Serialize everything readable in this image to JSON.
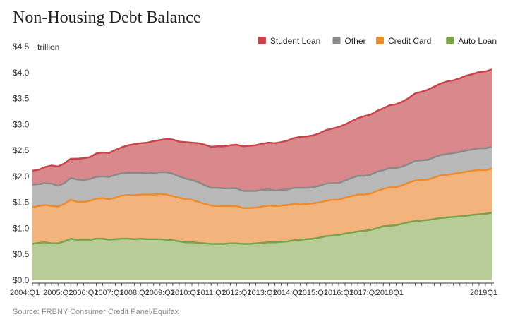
{
  "title": "Non-Housing Debt Balance",
  "source": "Source: FRBNY Consumer Credit Panel/Equifax",
  "chart_data": {
    "type": "area",
    "stacked": true,
    "title": "Non-Housing Debt Balance",
    "ylabel": "trillion",
    "ylim": [
      0,
      4.5
    ],
    "y_ticks": [
      "$0.0",
      "$0.5",
      "$1.0",
      "$1.5",
      "$2.0",
      "$2.5",
      "$3.0",
      "$3.5",
      "$4.0",
      "$4.5"
    ],
    "y_tick_values": [
      0,
      0.5,
      1.0,
      1.5,
      2.0,
      2.5,
      3.0,
      3.5,
      4.0,
      4.5
    ],
    "x_tick_labels": [
      "2004:Q1",
      "2005:Q1",
      "2006:Q1",
      "2007:Q1",
      "2008:Q1",
      "2009:Q1",
      "2010:Q1",
      "2011:Q1",
      "2012:Q1",
      "2013:Q1",
      "2014:Q1",
      "2015:Q1",
      "2016:Q1",
      "2017:Q1",
      "2018Q1",
      "2019Q1"
    ],
    "grid": false,
    "legend_position": "top-right",
    "legend_order": [
      "Student Loan",
      "Other",
      "Credit Card",
      "Auto Loan"
    ],
    "series": [
      {
        "name": "Auto Loan",
        "color": "#7aa24b",
        "fill": "#b8cc98",
        "values": [
          0.7,
          0.72,
          0.73,
          0.71,
          0.71,
          0.75,
          0.8,
          0.78,
          0.78,
          0.78,
          0.8,
          0.8,
          0.78,
          0.79,
          0.8,
          0.8,
          0.79,
          0.8,
          0.79,
          0.79,
          0.79,
          0.78,
          0.77,
          0.75,
          0.73,
          0.73,
          0.72,
          0.71,
          0.7,
          0.7,
          0.7,
          0.71,
          0.71,
          0.7,
          0.7,
          0.71,
          0.72,
          0.73,
          0.73,
          0.74,
          0.75,
          0.77,
          0.78,
          0.79,
          0.8,
          0.82,
          0.85,
          0.86,
          0.87,
          0.9,
          0.92,
          0.94,
          0.95,
          0.97,
          1.0,
          1.04,
          1.05,
          1.06,
          1.09,
          1.12,
          1.14,
          1.15,
          1.16,
          1.18,
          1.2,
          1.21,
          1.22,
          1.23,
          1.24,
          1.26,
          1.27,
          1.28,
          1.3
        ]
      },
      {
        "name": "Credit Card",
        "color": "#ee8b2a",
        "fill": "#f2b47c",
        "values": [
          0.71,
          0.71,
          0.72,
          0.72,
          0.71,
          0.72,
          0.75,
          0.73,
          0.73,
          0.75,
          0.77,
          0.78,
          0.78,
          0.8,
          0.83,
          0.84,
          0.85,
          0.85,
          0.86,
          0.86,
          0.87,
          0.87,
          0.85,
          0.84,
          0.83,
          0.82,
          0.79,
          0.76,
          0.74,
          0.73,
          0.73,
          0.72,
          0.72,
          0.69,
          0.69,
          0.69,
          0.7,
          0.71,
          0.7,
          0.7,
          0.7,
          0.7,
          0.68,
          0.68,
          0.68,
          0.68,
          0.68,
          0.69,
          0.68,
          0.69,
          0.7,
          0.71,
          0.7,
          0.7,
          0.72,
          0.72,
          0.74,
          0.73,
          0.74,
          0.76,
          0.78,
          0.78,
          0.78,
          0.8,
          0.82,
          0.82,
          0.83,
          0.84,
          0.85,
          0.85,
          0.85,
          0.84,
          0.85
        ]
      },
      {
        "name": "Other",
        "color": "#8a8a8a",
        "fill": "#b9b9b9",
        "values": [
          0.43,
          0.42,
          0.42,
          0.43,
          0.4,
          0.4,
          0.42,
          0.43,
          0.42,
          0.42,
          0.42,
          0.42,
          0.43,
          0.44,
          0.43,
          0.43,
          0.43,
          0.42,
          0.41,
          0.42,
          0.42,
          0.43,
          0.43,
          0.41,
          0.4,
          0.38,
          0.38,
          0.36,
          0.34,
          0.35,
          0.34,
          0.34,
          0.34,
          0.33,
          0.33,
          0.32,
          0.32,
          0.31,
          0.3,
          0.3,
          0.3,
          0.31,
          0.32,
          0.31,
          0.31,
          0.32,
          0.33,
          0.32,
          0.32,
          0.33,
          0.35,
          0.36,
          0.36,
          0.36,
          0.37,
          0.36,
          0.37,
          0.37,
          0.36,
          0.36,
          0.38,
          0.38,
          0.38,
          0.39,
          0.39,
          0.4,
          0.4,
          0.4,
          0.41,
          0.41,
          0.42,
          0.42,
          0.42
        ]
      },
      {
        "name": "Student Loan",
        "color": "#c9454c",
        "fill": "#d9898c",
        "values": [
          0.27,
          0.28,
          0.31,
          0.35,
          0.37,
          0.38,
          0.37,
          0.4,
          0.42,
          0.42,
          0.45,
          0.46,
          0.46,
          0.48,
          0.5,
          0.53,
          0.55,
          0.57,
          0.59,
          0.61,
          0.62,
          0.64,
          0.66,
          0.67,
          0.7,
          0.72,
          0.75,
          0.78,
          0.79,
          0.8,
          0.81,
          0.83,
          0.84,
          0.86,
          0.87,
          0.88,
          0.89,
          0.9,
          0.91,
          0.92,
          0.94,
          0.96,
          0.98,
          0.99,
          1.0,
          1.01,
          1.03,
          1.05,
          1.08,
          1.08,
          1.09,
          1.11,
          1.15,
          1.16,
          1.17,
          1.19,
          1.21,
          1.23,
          1.25,
          1.27,
          1.3,
          1.32,
          1.35,
          1.36,
          1.38,
          1.4,
          1.4,
          1.42,
          1.44,
          1.45,
          1.47,
          1.48,
          1.49
        ]
      }
    ]
  }
}
